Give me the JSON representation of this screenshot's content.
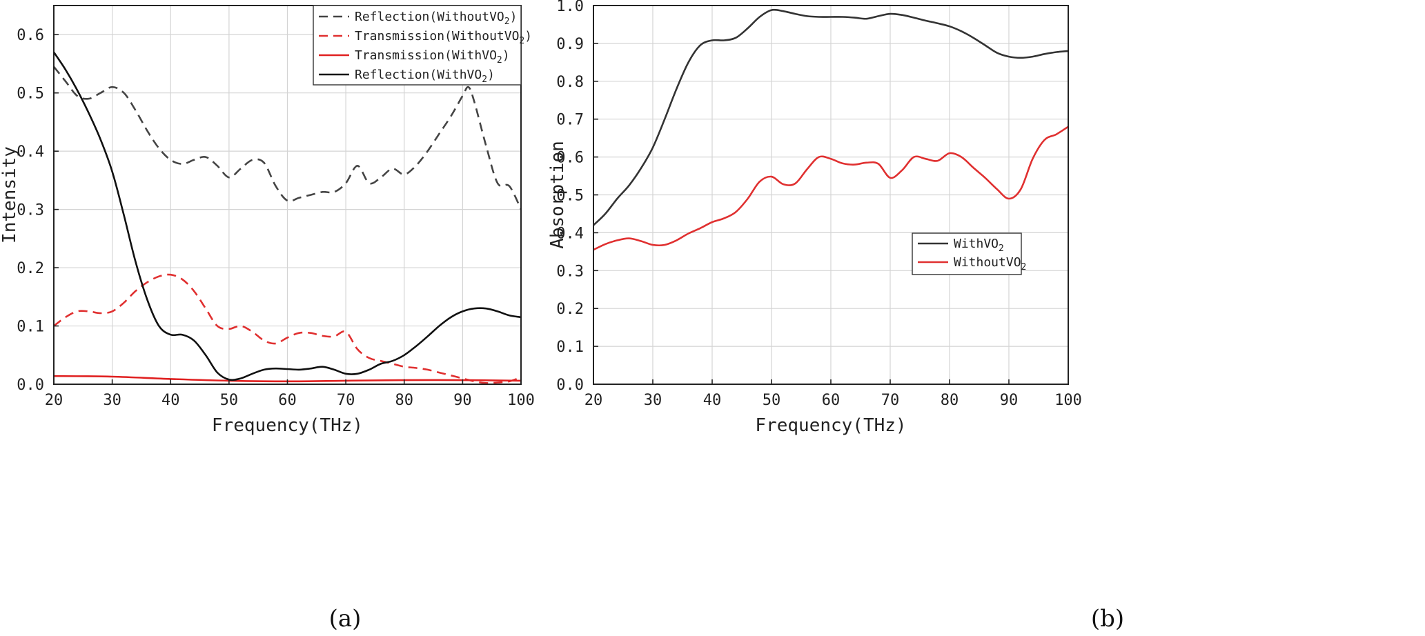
{
  "figure": {
    "captions": [
      "(a)",
      "(b)"
    ]
  },
  "chart_data": [
    {
      "type": "line",
      "title": "",
      "xlabel": "Frequency(THz)",
      "ylabel": "Intensity",
      "xlim": [
        20,
        100
      ],
      "ylim": [
        0.0,
        0.65
      ],
      "xticks": [
        "20",
        "30",
        "40",
        "50",
        "60",
        "70",
        "80",
        "90",
        "100"
      ],
      "yticks": [
        "0.0",
        "0.1",
        "0.2",
        "0.3",
        "0.4",
        "0.5",
        "0.6"
      ],
      "grid": true,
      "legend": "top-right",
      "series": [
        {
          "name": "Reflection(WithoutVO2)",
          "label_main": "Reflection(WithoutVO",
          "label_sub": "2",
          "label_end": ")",
          "color": "#444444",
          "dash": "dashed",
          "x": [
            20,
            22,
            24,
            26,
            28,
            30,
            32,
            34,
            36,
            38,
            40,
            42,
            44,
            46,
            48,
            50,
            52,
            54,
            56,
            58,
            60,
            62,
            64,
            66,
            68,
            70,
            72,
            74,
            76,
            78,
            80,
            82,
            84,
            86,
            88,
            90,
            91,
            92,
            94,
            96,
            98,
            100
          ],
          "y": [
            0.545,
            0.52,
            0.495,
            0.49,
            0.5,
            0.51,
            0.5,
            0.47,
            0.435,
            0.405,
            0.385,
            0.378,
            0.385,
            0.39,
            0.375,
            0.355,
            0.37,
            0.385,
            0.38,
            0.34,
            0.315,
            0.32,
            0.325,
            0.33,
            0.33,
            0.345,
            0.375,
            0.345,
            0.355,
            0.37,
            0.36,
            0.375,
            0.4,
            0.43,
            0.46,
            0.495,
            0.51,
            0.485,
            0.41,
            0.345,
            0.34,
            0.3
          ]
        },
        {
          "name": "Transmission(WithoutVO2)",
          "label_main": "Transmission(WithoutVO",
          "label_sub": "2",
          "label_end": ")",
          "color": "#e03030",
          "dash": "dashed",
          "x": [
            20,
            22,
            24,
            26,
            28,
            30,
            32,
            34,
            36,
            38,
            40,
            42,
            44,
            46,
            48,
            50,
            52,
            54,
            56,
            58,
            60,
            62,
            64,
            66,
            68,
            70,
            72,
            74,
            76,
            78,
            80,
            82,
            84,
            86,
            88,
            90,
            92,
            94,
            96,
            98,
            100
          ],
          "y": [
            0.1,
            0.115,
            0.125,
            0.125,
            0.122,
            0.125,
            0.14,
            0.16,
            0.175,
            0.185,
            0.188,
            0.18,
            0.16,
            0.13,
            0.1,
            0.095,
            0.1,
            0.09,
            0.075,
            0.07,
            0.08,
            0.088,
            0.088,
            0.083,
            0.082,
            0.09,
            0.06,
            0.045,
            0.04,
            0.035,
            0.03,
            0.028,
            0.025,
            0.02,
            0.015,
            0.01,
            0.005,
            0.002,
            0.003,
            0.005,
            0.012
          ]
        },
        {
          "name": "Transmission(WithVO2)",
          "label_main": "Transmission(WithVO",
          "label_sub": "2",
          "label_end": ")",
          "color": "#e02020",
          "dash": "solid",
          "x": [
            20,
            30,
            40,
            50,
            60,
            70,
            80,
            90,
            100
          ],
          "y": [
            0.014,
            0.013,
            0.009,
            0.006,
            0.005,
            0.006,
            0.007,
            0.007,
            0.006
          ]
        },
        {
          "name": "Reflection(WithVO2)",
          "label_main": "Reflection(WithVO",
          "label_sub": "2",
          "label_end": ")",
          "color": "#111111",
          "dash": "solid",
          "x": [
            20,
            22,
            24,
            26,
            28,
            30,
            32,
            34,
            36,
            38,
            40,
            42,
            44,
            46,
            48,
            50,
            52,
            54,
            56,
            58,
            60,
            62,
            64,
            66,
            68,
            70,
            72,
            74,
            76,
            78,
            80,
            82,
            84,
            86,
            88,
            90,
            92,
            94,
            96,
            98,
            100
          ],
          "y": [
            0.57,
            0.54,
            0.505,
            0.465,
            0.42,
            0.365,
            0.29,
            0.21,
            0.145,
            0.1,
            0.085,
            0.085,
            0.075,
            0.05,
            0.02,
            0.008,
            0.01,
            0.018,
            0.025,
            0.027,
            0.026,
            0.025,
            0.027,
            0.03,
            0.025,
            0.018,
            0.018,
            0.025,
            0.035,
            0.04,
            0.05,
            0.065,
            0.082,
            0.1,
            0.115,
            0.125,
            0.13,
            0.13,
            0.125,
            0.118,
            0.115
          ]
        }
      ]
    },
    {
      "type": "line",
      "title": "",
      "xlabel": "Frequency(THz)",
      "ylabel": "Absorption",
      "xlim": [
        20,
        100
      ],
      "ylim": [
        0.0,
        1.0
      ],
      "xticks": [
        "20",
        "30",
        "40",
        "50",
        "60",
        "70",
        "80",
        "90",
        "100"
      ],
      "yticks": [
        "0.0",
        "0.1",
        "0.2",
        "0.3",
        "0.4",
        "0.5",
        "0.6",
        "0.7",
        "0.8",
        "0.9",
        "1.0"
      ],
      "grid": true,
      "legend": "center-right",
      "series": [
        {
          "name": "WithVO2",
          "label_main": "WithVO",
          "label_sub": "2",
          "label_end": "",
          "color": "#333333",
          "dash": "solid",
          "x": [
            20,
            22,
            24,
            26,
            28,
            30,
            32,
            34,
            36,
            38,
            40,
            42,
            44,
            46,
            48,
            50,
            52,
            54,
            56,
            58,
            60,
            62,
            64,
            66,
            68,
            70,
            72,
            74,
            76,
            78,
            80,
            82,
            84,
            86,
            88,
            90,
            92,
            94,
            96,
            98,
            100
          ],
          "y": [
            0.42,
            0.45,
            0.49,
            0.525,
            0.57,
            0.625,
            0.7,
            0.78,
            0.85,
            0.895,
            0.908,
            0.908,
            0.915,
            0.94,
            0.97,
            0.988,
            0.985,
            0.978,
            0.972,
            0.97,
            0.97,
            0.97,
            0.968,
            0.965,
            0.972,
            0.978,
            0.975,
            0.968,
            0.96,
            0.953,
            0.945,
            0.932,
            0.915,
            0.895,
            0.875,
            0.865,
            0.862,
            0.865,
            0.872,
            0.877,
            0.88
          ]
        },
        {
          "name": "WithoutVO2",
          "label_main": "WithoutVO",
          "label_sub": "2",
          "label_end": "",
          "color": "#e03030",
          "dash": "solid",
          "x": [
            20,
            22,
            24,
            26,
            28,
            30,
            32,
            34,
            36,
            38,
            40,
            42,
            44,
            46,
            48,
            50,
            52,
            54,
            56,
            58,
            60,
            62,
            64,
            66,
            68,
            70,
            72,
            74,
            76,
            78,
            80,
            82,
            84,
            86,
            88,
            90,
            92,
            94,
            96,
            98,
            100
          ],
          "y": [
            0.355,
            0.37,
            0.38,
            0.385,
            0.378,
            0.368,
            0.368,
            0.38,
            0.398,
            0.412,
            0.428,
            0.438,
            0.455,
            0.49,
            0.535,
            0.548,
            0.528,
            0.53,
            0.568,
            0.6,
            0.595,
            0.583,
            0.58,
            0.585,
            0.582,
            0.545,
            0.565,
            0.6,
            0.595,
            0.59,
            0.61,
            0.6,
            0.572,
            0.545,
            0.515,
            0.49,
            0.515,
            0.595,
            0.645,
            0.66,
            0.68
          ]
        }
      ]
    }
  ]
}
